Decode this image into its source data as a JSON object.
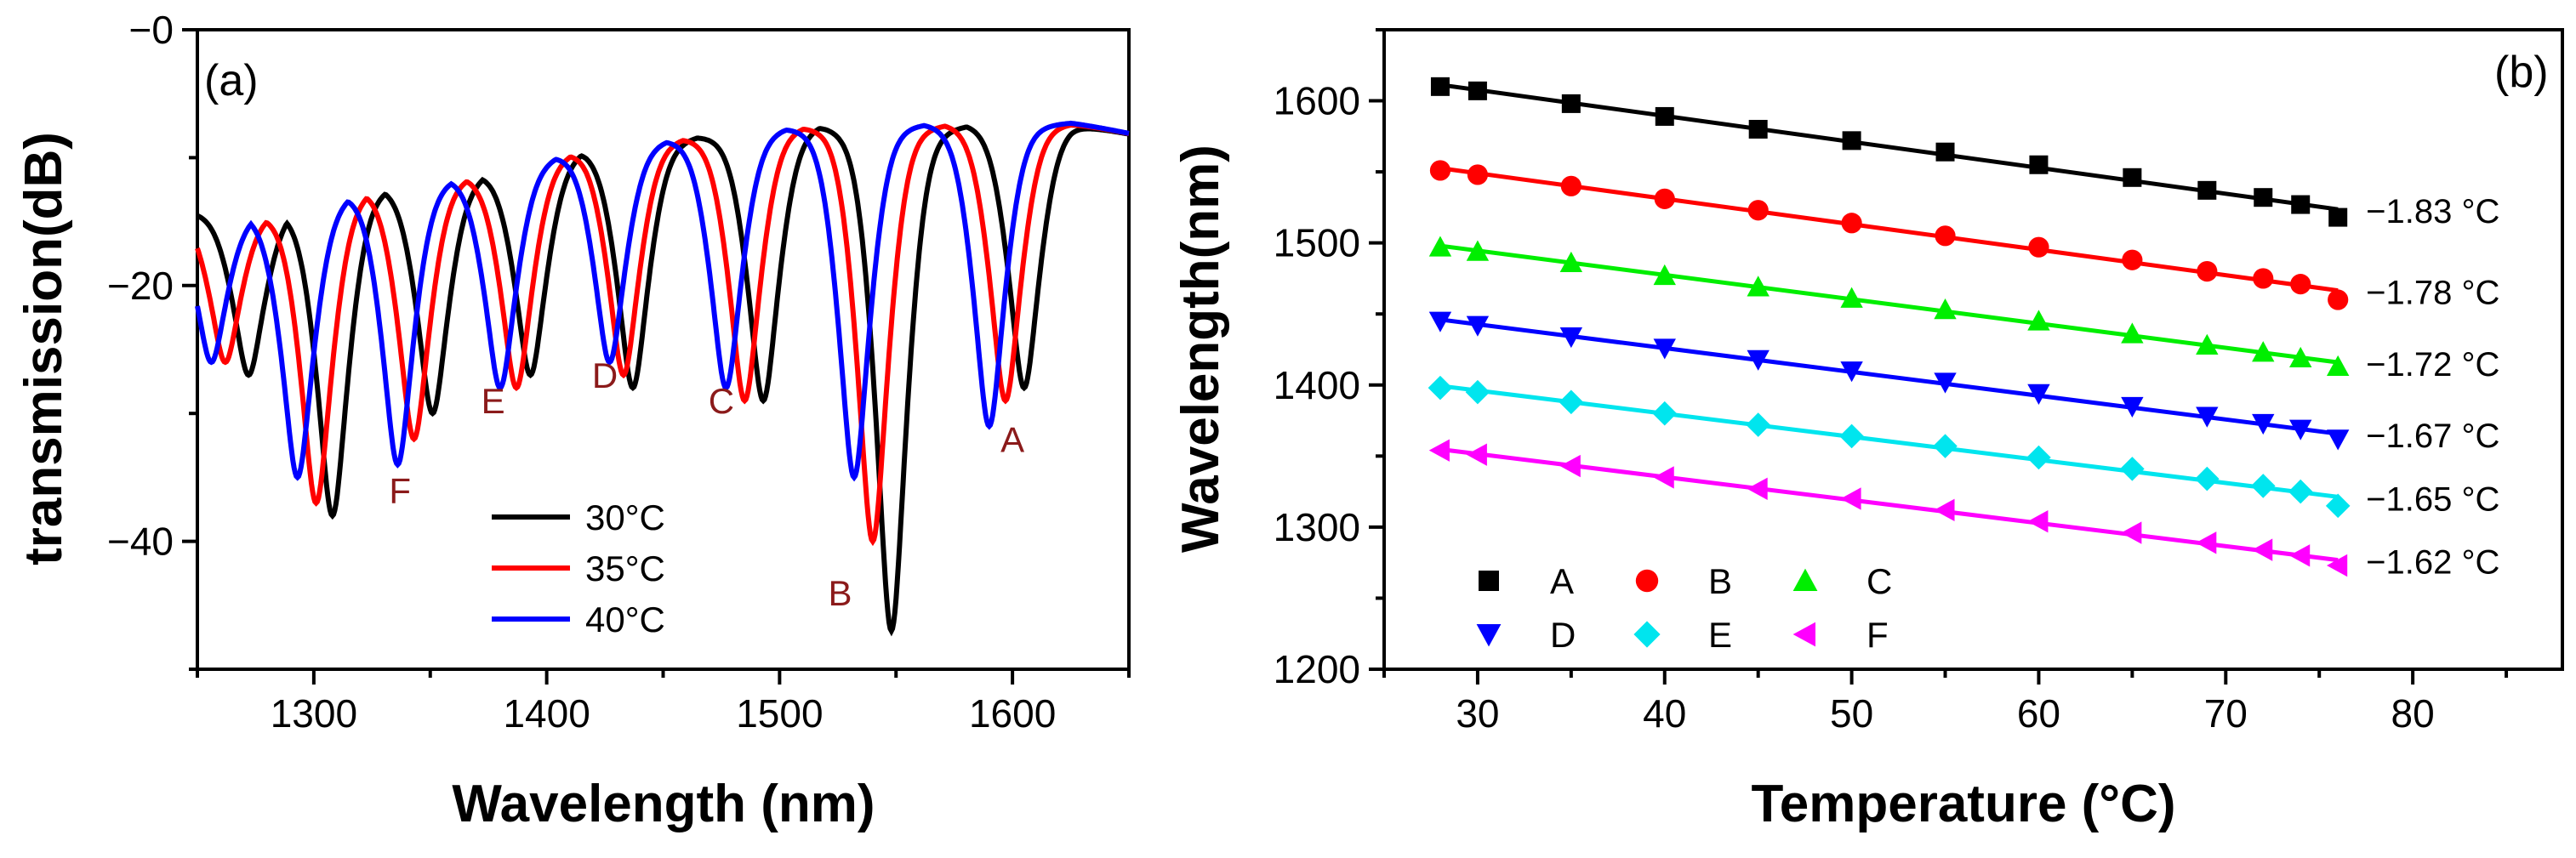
{
  "chart_data": [
    {
      "panel": "(a)",
      "type": "line",
      "xlabel": "Wavelength (nm)",
      "ylabel": "transmission(dB)",
      "xlim": [
        1250,
        1650
      ],
      "ylim": [
        -50,
        0
      ],
      "xticks": [
        1300,
        1400,
        1500,
        1600
      ],
      "yticks": [
        0,
        -20,
        -40
      ],
      "ytick_labels": [
        "−0",
        "−20",
        "−40"
      ],
      "series": [
        {
          "name": "30°C",
          "color": "#000000",
          "shift": 8,
          "dips": [
            [
              1272,
              -27
            ],
            [
              1308,
              -38
            ],
            [
              1351,
              -30
            ],
            [
              1393,
              -27
            ],
            [
              1437,
              -28
            ],
            [
              1493,
              -29
            ],
            [
              1548,
              -47
            ],
            [
              1605,
              -28
            ]
          ]
        },
        {
          "name": "35°C",
          "color": "#ff0000",
          "shift": 4,
          "dips": [
            [
              1262,
              -26
            ],
            [
              1301,
              -37
            ],
            [
              1343,
              -32
            ],
            [
              1387,
              -28
            ],
            [
              1433,
              -27
            ],
            [
              1485,
              -29
            ],
            [
              1540,
              -40
            ],
            [
              1597,
              -29
            ]
          ]
        },
        {
          "name": "40°C",
          "color": "#0000ff",
          "shift": 0,
          "dips": [
            [
              1256,
              -26
            ],
            [
              1293,
              -35
            ],
            [
              1336,
              -34
            ],
            [
              1380,
              -28
            ],
            [
              1427,
              -26
            ],
            [
              1477,
              -28
            ],
            [
              1532,
              -35
            ],
            [
              1590,
              -31
            ]
          ]
        }
      ],
      "peaks": [
        [
          1250,
          -14
        ],
        [
          1280,
          -14
        ],
        [
          1325,
          -12
        ],
        [
          1370,
          -11
        ],
        [
          1417,
          -9
        ],
        [
          1467,
          -8
        ],
        [
          1520,
          -7
        ],
        [
          1575,
          -7
        ],
        [
          1625,
          -7
        ],
        [
          1650,
          -8
        ]
      ],
      "annotations": [
        {
          "text": "A",
          "x": 1600,
          "y": -33
        },
        {
          "text": "B",
          "x": 1526,
          "y": -45
        },
        {
          "text": "C",
          "x": 1475,
          "y": -30
        },
        {
          "text": "D",
          "x": 1425,
          "y": -28
        },
        {
          "text": "E",
          "x": 1377,
          "y": -30
        },
        {
          "text": "F",
          "x": 1337,
          "y": -37
        }
      ]
    },
    {
      "panel": "(b)",
      "type": "scatter",
      "xlabel": "Temperature (°C)",
      "ylabel": "Wavelength(nm)",
      "xlim": [
        25,
        88
      ],
      "ylim": [
        1200,
        1650
      ],
      "xticks": [
        30,
        40,
        50,
        60,
        70,
        80
      ],
      "yticks": [
        1200,
        1300,
        1400,
        1500,
        1600
      ],
      "x": [
        28,
        30,
        35,
        40,
        45,
        50,
        55,
        60,
        65,
        69,
        72,
        74,
        76
      ],
      "series": [
        {
          "name": "A",
          "color": "#000000",
          "marker": "square",
          "slope_label": "−1.83 °C",
          "values": [
            1610,
            1607,
            1598,
            1589,
            1580,
            1572,
            1564,
            1555,
            1546,
            1537,
            1532,
            1527,
            1518
          ]
        },
        {
          "name": "B",
          "color": "#ff0000",
          "marker": "circle",
          "slope_label": "−1.78 °C",
          "values": [
            1551,
            1548,
            1540,
            1531,
            1523,
            1514,
            1505,
            1497,
            1488,
            1480,
            1475,
            1471,
            1460
          ]
        },
        {
          "name": "C",
          "color": "#00ee00",
          "marker": "triangle-up",
          "slope_label": "−1.72 °C",
          "values": [
            1497,
            1494,
            1486,
            1477,
            1469,
            1461,
            1453,
            1445,
            1436,
            1428,
            1423,
            1419,
            1413
          ]
        },
        {
          "name": "D",
          "color": "#0000ff",
          "marker": "triangle-down",
          "slope_label": "−1.67 °C",
          "values": [
            1445,
            1442,
            1434,
            1426,
            1418,
            1410,
            1402,
            1394,
            1385,
            1378,
            1373,
            1369,
            1362
          ]
        },
        {
          "name": "E",
          "color": "#00e5ee",
          "marker": "diamond",
          "slope_label": "−1.65 °C",
          "values": [
            1398,
            1395,
            1388,
            1380,
            1372,
            1364,
            1357,
            1349,
            1341,
            1334,
            1329,
            1325,
            1315
          ]
        },
        {
          "name": "F",
          "color": "#ff00ff",
          "marker": "triangle-left",
          "slope_label": "−1.62 °C",
          "values": [
            1354,
            1351,
            1343,
            1335,
            1327,
            1320,
            1312,
            1304,
            1296,
            1289,
            1284,
            1280,
            1273
          ]
        }
      ]
    }
  ]
}
